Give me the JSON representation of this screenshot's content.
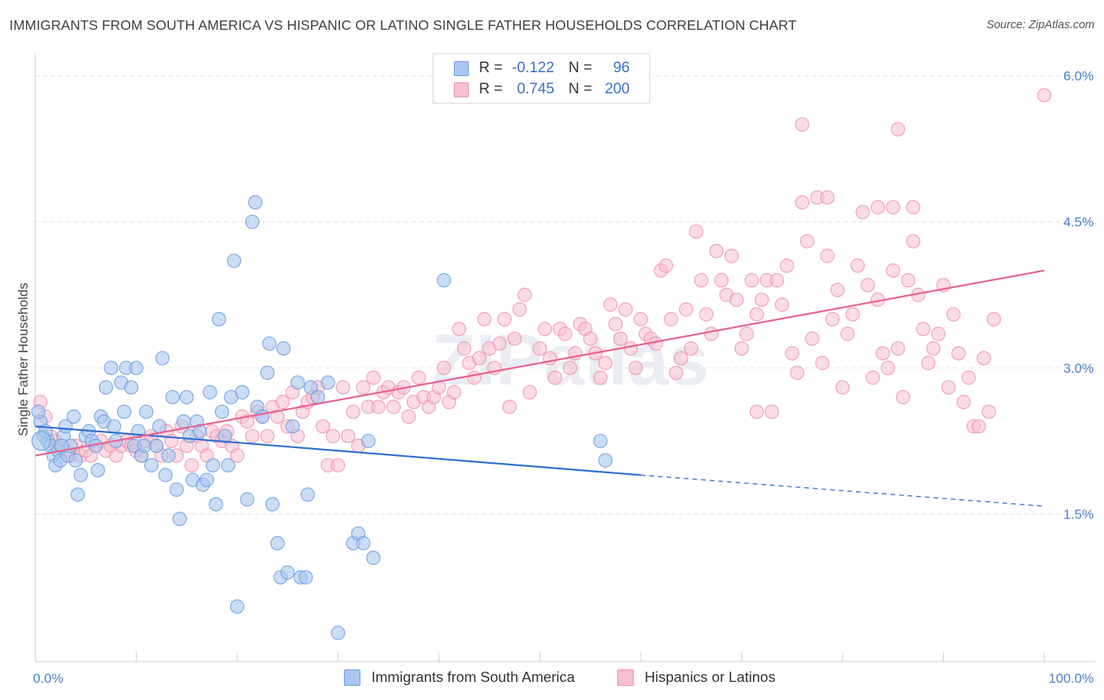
{
  "title": "IMMIGRANTS FROM SOUTH AMERICA VS HISPANIC OR LATINO SINGLE FATHER HOUSEHOLDS CORRELATION CHART",
  "source": "Source: ZipAtlas.com",
  "watermark": "ZIPatlas",
  "colors": {
    "blue_fill": "#a9c6ef",
    "blue_stroke": "#6f9ee0",
    "blue_line": "#2f6fcf",
    "pink_fill": "#f7bfd0",
    "pink_stroke": "#ee8fab",
    "pink_line": "#e8618d",
    "grid": "#e3e3e3",
    "tick_label": "#4a7fd0"
  },
  "legend": {
    "rows": [
      {
        "r_label": "R =",
        "r_value": "-0.122",
        "n_label": "N =",
        "n_value": "96"
      },
      {
        "r_label": "R =",
        "r_value": "0.745",
        "n_label": "N =",
        "n_value": "200"
      }
    ],
    "bottom": [
      "Immigrants from South America",
      "Hispanics or Latinos"
    ]
  },
  "chart_data": {
    "type": "scatter",
    "title": "IMMIGRANTS FROM SOUTH AMERICA VS HISPANIC OR LATINO SINGLE FATHER HOUSEHOLDS CORRELATION CHART",
    "xlabel": "",
    "ylabel": "Single Father Households",
    "xlim": [
      0,
      100
    ],
    "ylim": [
      0.0,
      6.3
    ],
    "x_tick_labels": [
      "0.0%",
      "100.0%"
    ],
    "y_ticks": [
      1.5,
      3.0,
      4.5,
      6.0
    ],
    "y_tick_labels": [
      "1.5%",
      "3.0%",
      "4.5%",
      "6.0%"
    ],
    "series": [
      {
        "name": "Immigrants from South America",
        "r": -0.122,
        "n": 96,
        "trend": {
          "x0": 0,
          "y0": 2.4,
          "x1": 60,
          "y1": 1.9,
          "dashed_to_x": 100,
          "dashed_to_y": 1.58
        },
        "points": [
          [
            0.5,
            2.45
          ],
          [
            0.8,
            2.3
          ],
          [
            1.2,
            2.25
          ],
          [
            1.5,
            2.2
          ],
          [
            1.8,
            2.1
          ],
          [
            2.0,
            2.0
          ],
          [
            2.3,
            2.15
          ],
          [
            2.5,
            2.05
          ],
          [
            2.8,
            2.3
          ],
          [
            3.0,
            2.4
          ],
          [
            3.2,
            2.1
          ],
          [
            3.5,
            2.2
          ],
          [
            3.8,
            2.5
          ],
          [
            4.0,
            2.05
          ],
          [
            4.2,
            1.7
          ],
          [
            4.5,
            1.9
          ],
          [
            5.0,
            2.3
          ],
          [
            5.3,
            2.35
          ],
          [
            5.6,
            2.25
          ],
          [
            6.0,
            2.2
          ],
          [
            6.5,
            2.5
          ],
          [
            6.8,
            2.45
          ],
          [
            7.0,
            2.8
          ],
          [
            7.5,
            3.0
          ],
          [
            7.8,
            2.4
          ],
          [
            8.0,
            2.25
          ],
          [
            8.5,
            2.85
          ],
          [
            8.8,
            2.55
          ],
          [
            9.0,
            3.0
          ],
          [
            9.5,
            2.8
          ],
          [
            9.8,
            2.2
          ],
          [
            10.0,
            3.0
          ],
          [
            10.5,
            2.1
          ],
          [
            10.8,
            2.2
          ],
          [
            11.0,
            2.55
          ],
          [
            11.5,
            2.0
          ],
          [
            12.0,
            2.2
          ],
          [
            12.3,
            2.4
          ],
          [
            12.6,
            3.1
          ],
          [
            12.9,
            1.9
          ],
          [
            13.2,
            2.1
          ],
          [
            13.6,
            2.7
          ],
          [
            14.0,
            1.75
          ],
          [
            14.3,
            1.45
          ],
          [
            14.7,
            2.45
          ],
          [
            15.0,
            2.7
          ],
          [
            15.3,
            2.3
          ],
          [
            15.6,
            1.85
          ],
          [
            16.0,
            2.45
          ],
          [
            16.3,
            2.35
          ],
          [
            16.6,
            1.8
          ],
          [
            17.0,
            1.85
          ],
          [
            17.3,
            2.75
          ],
          [
            17.6,
            2.0
          ],
          [
            17.9,
            1.6
          ],
          [
            18.2,
            3.5
          ],
          [
            18.5,
            2.55
          ],
          [
            18.8,
            2.3
          ],
          [
            19.1,
            2.0
          ],
          [
            19.4,
            2.7
          ],
          [
            19.7,
            4.1
          ],
          [
            20.0,
            0.55
          ],
          [
            20.5,
            2.75
          ],
          [
            21.0,
            1.65
          ],
          [
            21.5,
            4.5
          ],
          [
            21.8,
            4.7
          ],
          [
            22.0,
            2.6
          ],
          [
            22.5,
            2.5
          ],
          [
            23.0,
            2.95
          ],
          [
            23.2,
            3.25
          ],
          [
            23.5,
            1.6
          ],
          [
            24.0,
            1.2
          ],
          [
            24.3,
            0.85
          ],
          [
            24.6,
            3.2
          ],
          [
            25.0,
            0.9
          ],
          [
            25.5,
            2.4
          ],
          [
            26.0,
            2.85
          ],
          [
            26.3,
            0.85
          ],
          [
            26.8,
            0.85
          ],
          [
            27.0,
            1.7
          ],
          [
            27.3,
            2.8
          ],
          [
            28.0,
            2.7
          ],
          [
            29.0,
            2.85
          ],
          [
            30.0,
            0.28
          ],
          [
            31.5,
            1.2
          ],
          [
            32.0,
            1.3
          ],
          [
            32.5,
            1.2
          ],
          [
            33.0,
            2.25
          ],
          [
            33.5,
            1.05
          ],
          [
            40.5,
            3.9
          ],
          [
            56.0,
            2.25
          ],
          [
            56.5,
            2.05
          ],
          [
            0.3,
            2.55
          ],
          [
            1.0,
            2.35
          ],
          [
            2.6,
            2.2
          ],
          [
            6.2,
            1.95
          ],
          [
            10.2,
            2.35
          ]
        ]
      },
      {
        "name": "Hispanics or Latinos",
        "r": 0.745,
        "n": 200,
        "trend": {
          "x0": 0,
          "y0": 2.1,
          "x1": 100,
          "y1": 4.0
        },
        "points": [
          [
            0.5,
            2.65
          ],
          [
            1.0,
            2.5
          ],
          [
            1.5,
            2.3
          ],
          [
            2.0,
            2.25
          ],
          [
            2.5,
            2.2
          ],
          [
            3.0,
            2.15
          ],
          [
            3.5,
            2.1
          ],
          [
            4.0,
            2.2
          ],
          [
            4.5,
            2.1
          ],
          [
            5.0,
            2.15
          ],
          [
            5.5,
            2.1
          ],
          [
            6.0,
            2.2
          ],
          [
            6.5,
            2.25
          ],
          [
            7.0,
            2.15
          ],
          [
            7.5,
            2.2
          ],
          [
            8.0,
            2.1
          ],
          [
            8.5,
            2.2
          ],
          [
            9.0,
            2.25
          ],
          [
            9.5,
            2.2
          ],
          [
            10.0,
            2.15
          ],
          [
            10.5,
            2.1
          ],
          [
            11.0,
            2.25
          ],
          [
            11.5,
            2.3
          ],
          [
            12.0,
            2.2
          ],
          [
            12.5,
            2.1
          ],
          [
            13.0,
            2.35
          ],
          [
            13.5,
            2.25
          ],
          [
            14.0,
            2.1
          ],
          [
            14.5,
            2.4
          ],
          [
            15.0,
            2.2
          ],
          [
            15.5,
            2.0
          ],
          [
            16.0,
            2.3
          ],
          [
            16.5,
            2.2
          ],
          [
            17.0,
            2.1
          ],
          [
            17.5,
            2.35
          ],
          [
            18.0,
            2.3
          ],
          [
            18.5,
            2.25
          ],
          [
            19.0,
            2.35
          ],
          [
            19.5,
            2.2
          ],
          [
            20.0,
            2.1
          ],
          [
            20.5,
            2.5
          ],
          [
            21.0,
            2.45
          ],
          [
            21.5,
            2.3
          ],
          [
            22.0,
            2.55
          ],
          [
            22.5,
            2.5
          ],
          [
            23.0,
            2.3
          ],
          [
            23.5,
            2.6
          ],
          [
            24.0,
            2.5
          ],
          [
            24.5,
            2.65
          ],
          [
            25.0,
            2.4
          ],
          [
            25.5,
            2.75
          ],
          [
            26.0,
            2.3
          ],
          [
            26.5,
            2.55
          ],
          [
            27.0,
            2.65
          ],
          [
            27.5,
            2.7
          ],
          [
            28.0,
            2.8
          ],
          [
            28.5,
            2.4
          ],
          [
            29.0,
            2.0
          ],
          [
            29.5,
            2.3
          ],
          [
            30.0,
            2.0
          ],
          [
            30.5,
            2.8
          ],
          [
            31.0,
            2.3
          ],
          [
            31.5,
            2.55
          ],
          [
            32.0,
            2.2
          ],
          [
            32.5,
            2.8
          ],
          [
            33.0,
            2.6
          ],
          [
            33.5,
            2.9
          ],
          [
            34.0,
            2.6
          ],
          [
            34.5,
            2.75
          ],
          [
            35.0,
            2.8
          ],
          [
            35.5,
            2.6
          ],
          [
            36.0,
            2.75
          ],
          [
            36.5,
            2.8
          ],
          [
            37.0,
            2.5
          ],
          [
            37.5,
            2.65
          ],
          [
            38.0,
            2.9
          ],
          [
            38.5,
            2.7
          ],
          [
            39.0,
            2.6
          ],
          [
            39.5,
            2.7
          ],
          [
            40.0,
            2.8
          ],
          [
            40.5,
            3.0
          ],
          [
            41.0,
            2.65
          ],
          [
            41.5,
            2.75
          ],
          [
            42.0,
            3.4
          ],
          [
            42.5,
            3.2
          ],
          [
            43.0,
            3.05
          ],
          [
            43.5,
            2.9
          ],
          [
            44.0,
            3.1
          ],
          [
            44.5,
            3.5
          ],
          [
            45.0,
            3.2
          ],
          [
            45.5,
            3.0
          ],
          [
            46.0,
            3.25
          ],
          [
            46.5,
            3.5
          ],
          [
            47.0,
            2.6
          ],
          [
            47.5,
            3.3
          ],
          [
            48.0,
            3.6
          ],
          [
            48.5,
            3.75
          ],
          [
            49.0,
            2.75
          ],
          [
            50.0,
            3.2
          ],
          [
            50.5,
            3.4
          ],
          [
            51.0,
            3.1
          ],
          [
            51.5,
            2.9
          ],
          [
            52.0,
            3.4
          ],
          [
            52.5,
            3.35
          ],
          [
            53.0,
            3.0
          ],
          [
            53.5,
            3.15
          ],
          [
            54.0,
            3.45
          ],
          [
            54.5,
            3.4
          ],
          [
            55.0,
            3.3
          ],
          [
            55.5,
            3.15
          ],
          [
            56.0,
            2.9
          ],
          [
            56.5,
            3.05
          ],
          [
            57.0,
            3.65
          ],
          [
            57.5,
            3.45
          ],
          [
            58.0,
            3.3
          ],
          [
            58.5,
            3.6
          ],
          [
            59.0,
            3.2
          ],
          [
            59.5,
            3.0
          ],
          [
            60.0,
            3.5
          ],
          [
            60.5,
            3.35
          ],
          [
            61.0,
            3.3
          ],
          [
            61.5,
            3.25
          ],
          [
            62.0,
            4.0
          ],
          [
            62.5,
            4.05
          ],
          [
            63.0,
            3.5
          ],
          [
            63.5,
            2.95
          ],
          [
            64.0,
            3.1
          ],
          [
            64.5,
            3.6
          ],
          [
            65.0,
            3.2
          ],
          [
            65.5,
            4.4
          ],
          [
            66.0,
            3.9
          ],
          [
            66.5,
            3.55
          ],
          [
            67.0,
            3.35
          ],
          [
            67.5,
            4.2
          ],
          [
            68.0,
            3.9
          ],
          [
            68.5,
            3.75
          ],
          [
            69.0,
            4.15
          ],
          [
            69.5,
            3.7
          ],
          [
            70.0,
            3.2
          ],
          [
            70.5,
            3.35
          ],
          [
            71.0,
            3.9
          ],
          [
            71.5,
            3.55
          ],
          [
            72.0,
            3.7
          ],
          [
            72.5,
            3.9
          ],
          [
            73.0,
            2.55
          ],
          [
            73.5,
            3.9
          ],
          [
            74.0,
            3.65
          ],
          [
            74.5,
            4.05
          ],
          [
            75.0,
            3.15
          ],
          [
            75.5,
            2.95
          ],
          [
            76.0,
            4.7
          ],
          [
            76.5,
            4.3
          ],
          [
            77.0,
            3.3
          ],
          [
            77.5,
            4.75
          ],
          [
            78.0,
            3.05
          ],
          [
            78.5,
            4.15
          ],
          [
            79.0,
            3.5
          ],
          [
            79.5,
            3.8
          ],
          [
            80.0,
            2.8
          ],
          [
            80.5,
            3.35
          ],
          [
            81.0,
            3.55
          ],
          [
            81.5,
            4.05
          ],
          [
            82.0,
            4.6
          ],
          [
            82.5,
            3.85
          ],
          [
            83.0,
            2.9
          ],
          [
            83.5,
            3.7
          ],
          [
            84.0,
            3.15
          ],
          [
            84.5,
            3.0
          ],
          [
            85.0,
            4.0
          ],
          [
            85.5,
            3.2
          ],
          [
            86.0,
            2.7
          ],
          [
            86.5,
            3.9
          ],
          [
            87.0,
            4.3
          ],
          [
            87.5,
            3.75
          ],
          [
            88.0,
            3.4
          ],
          [
            88.5,
            3.05
          ],
          [
            89.0,
            3.2
          ],
          [
            89.5,
            3.35
          ],
          [
            90.0,
            3.85
          ],
          [
            90.5,
            2.8
          ],
          [
            91.0,
            3.55
          ],
          [
            91.5,
            3.15
          ],
          [
            92.0,
            2.65
          ],
          [
            92.5,
            2.9
          ],
          [
            93.0,
            2.4
          ],
          [
            93.5,
            2.4
          ],
          [
            94.0,
            3.1
          ],
          [
            94.5,
            2.55
          ],
          [
            95.0,
            3.5
          ],
          [
            71.5,
            2.55
          ],
          [
            76.0,
            5.5
          ],
          [
            85.5,
            5.45
          ],
          [
            100.0,
            5.8
          ],
          [
            87.0,
            4.65
          ],
          [
            83.5,
            4.65
          ],
          [
            85.0,
            4.65
          ],
          [
            78.5,
            4.75
          ]
        ]
      }
    ]
  }
}
